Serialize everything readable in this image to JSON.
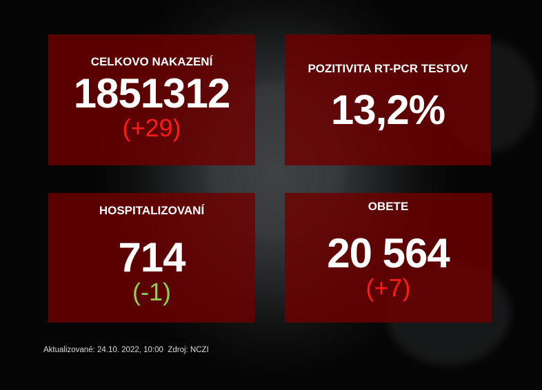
{
  "panels": [
    {
      "title": "CELKOVO NAKAZENÍ",
      "value": "1851312",
      "delta": "(+29)"
    },
    {
      "title": "POZITIVITA RT-PCR TESTOV",
      "value": "13,2%"
    },
    {
      "title": "HOSPITALIZOVANÍ",
      "value": "714",
      "delta": "(-1)"
    },
    {
      "title": "OBETE",
      "value": "20 564",
      "delta": "(+7)"
    }
  ],
  "footer": {
    "updated": "Aktualizované: 24.10. 2022, 10:00",
    "source": "Zdroj: NCZI"
  },
  "colors": {
    "panel": "#6e0000",
    "increase": "#ff1a1a",
    "decrease": "#8cd14a"
  }
}
